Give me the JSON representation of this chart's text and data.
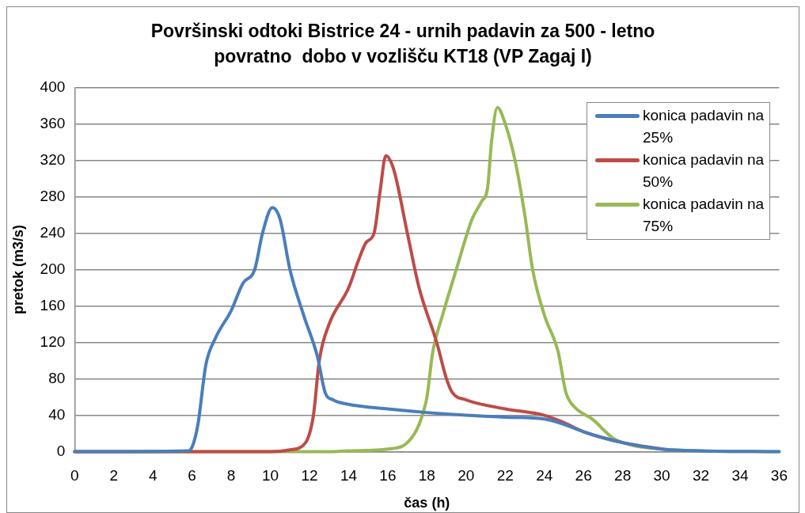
{
  "chart_data": {
    "type": "line",
    "title": "Površinski odtoki Bistrice 24 - urnih padavin za 500 - letno povratno  dobo v vozlišču KT18 (VP Zagaj I)",
    "xlabel": "čas (h)",
    "ylabel": "pretok (m3/s)",
    "series": [
      {
        "name": "konica padavin na 25%",
        "color": "#4a7ebb",
        "x": [
          0,
          5.8,
          6,
          6.3,
          6.7,
          7.2,
          8,
          8.6,
          9.2,
          9.6,
          10.1,
          10.5,
          11,
          11.7,
          12.4,
          12.8,
          13.2,
          14,
          16,
          18,
          20,
          22,
          24,
          25,
          26,
          28,
          30,
          32,
          36
        ],
        "values": [
          0,
          1,
          5,
          30,
          95,
          125,
          155,
          185,
          200,
          240,
          268,
          255,
          200,
          150,
          105,
          65,
          57,
          52,
          47,
          43,
          40,
          38,
          36,
          30,
          22,
          10,
          3,
          1,
          0
        ]
      },
      {
        "name": "konica padavin na 50%",
        "color": "#be4b48",
        "x": [
          0,
          10,
          11,
          11.8,
          12.2,
          12.5,
          13,
          14,
          14.5,
          14.9,
          15.3,
          15.6,
          15.9,
          16.3,
          17,
          17.6,
          18.5,
          19,
          19.3,
          20,
          22,
          24,
          25,
          26,
          28,
          30
        ],
        "values": [
          0,
          0,
          2,
          10,
          40,
          100,
          140,
          180,
          210,
          230,
          240,
          285,
          325,
          310,
          240,
          180,
          120,
          80,
          65,
          57,
          47,
          40,
          32,
          22,
          10,
          3
        ]
      },
      {
        "name": "konica padavin na 75%",
        "color": "#98b954",
        "x": [
          0,
          13,
          14,
          16,
          17,
          17.6,
          18,
          18.3,
          18.8,
          19.5,
          20.3,
          20.8,
          21.1,
          21.3,
          21.6,
          22,
          22.5,
          23,
          23.4,
          24,
          24.7,
          25.1,
          25.5,
          26.5,
          27.5,
          28.5,
          30,
          32,
          36
        ],
        "values": [
          0,
          0,
          1,
          3,
          10,
          30,
          60,
          110,
          150,
          200,
          255,
          275,
          290,
          340,
          378,
          360,
          320,
          260,
          200,
          150,
          110,
          65,
          50,
          35,
          15,
          7,
          3,
          1,
          0
        ]
      }
    ],
    "xlim": [
      0,
      36
    ],
    "xticks": [
      0,
      2,
      4,
      6,
      8,
      10,
      12,
      14,
      16,
      18,
      20,
      22,
      24,
      26,
      28,
      30,
      32,
      34,
      36
    ],
    "ylim": [
      0,
      400
    ],
    "yticks": [
      0,
      40,
      80,
      120,
      160,
      200,
      240,
      280,
      320,
      360,
      400
    ],
    "grid": "y",
    "legend": "top right",
    "marker": "none",
    "line_style": "solid"
  }
}
